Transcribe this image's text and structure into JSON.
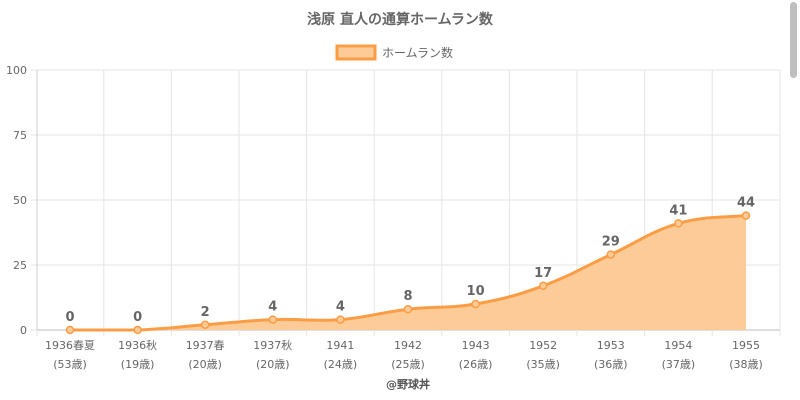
{
  "chart_data": {
    "type": "area",
    "title": "浅原 直人の通算ホームラン数",
    "series": [
      {
        "name": "ホームラン数",
        "values": [
          0,
          0,
          2,
          4,
          4,
          8,
          10,
          17,
          29,
          41,
          44
        ]
      }
    ],
    "categories": [
      [
        "1936春夏",
        "(53歳)"
      ],
      [
        "1936秋",
        "(19歳)"
      ],
      [
        "1937春",
        "(20歳)"
      ],
      [
        "1937秋",
        "(20歳)"
      ],
      [
        "1941",
        "(24歳)"
      ],
      [
        "1942",
        "(25歳)"
      ],
      [
        "1943",
        "(26歳)"
      ],
      [
        "1952",
        "(35歳)"
      ],
      [
        "1953",
        "(36歳)"
      ],
      [
        "1954",
        "(37歳)"
      ],
      [
        "1955",
        "(38歳)"
      ]
    ],
    "ylim": [
      0,
      100
    ],
    "yticks": [
      0,
      25,
      50,
      75,
      100
    ],
    "grid": true,
    "legend_position": "top",
    "colors": {
      "line": "#fb9d45",
      "fill": "#fdcb98",
      "grid": "#e5e5e5",
      "text": "#666666"
    }
  },
  "footer": "@野球丼"
}
